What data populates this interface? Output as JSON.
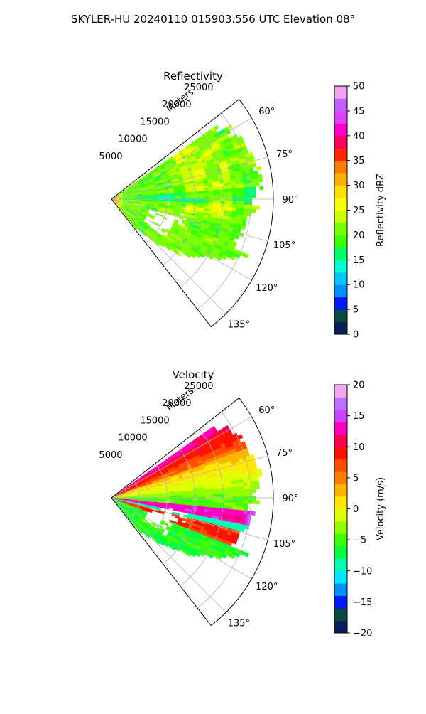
{
  "figure": {
    "suptitle": "SKYLER-HU  20240110  015903.556 UTC Elevation 08°"
  },
  "chart_data": [
    {
      "type": "heatmap",
      "projection": "polar-sector",
      "title": "Reflectivity",
      "range_label": "Meters",
      "range_ticks": [
        5000,
        10000,
        15000,
        20000,
        25000
      ],
      "range_tick_labels": [
        "5000",
        "10000",
        "15000",
        "20000",
        "25000"
      ],
      "azimuth_limits": [
        52,
        142
      ],
      "azimuth_ticks": [
        60,
        75,
        90,
        105,
        120,
        135
      ],
      "azimuth_tick_labels": [
        "60°",
        "75°",
        "90°",
        "105°",
        "120°",
        "135°"
      ],
      "rmax": 29000,
      "grid": true,
      "colorbar": {
        "label": "Reflectivity dBZ",
        "range": [
          0,
          50
        ],
        "ticks": [
          0,
          5,
          10,
          15,
          20,
          25,
          30,
          35,
          40,
          45,
          50
        ],
        "tick_labels": [
          "0",
          "5",
          "10",
          "15",
          "20",
          "25",
          "30",
          "35",
          "40",
          "45",
          "50"
        ],
        "stops": [
          [
            0,
            "#08205a"
          ],
          [
            3,
            "#0a4a3a"
          ],
          [
            5,
            "#0018ff"
          ],
          [
            8,
            "#0090ff"
          ],
          [
            10,
            "#00c8ff"
          ],
          [
            13,
            "#00ffd0"
          ],
          [
            15,
            "#00ff6a"
          ],
          [
            18,
            "#3cff00"
          ],
          [
            20,
            "#78ff00"
          ],
          [
            23,
            "#c8ff00"
          ],
          [
            25,
            "#f5ff00"
          ],
          [
            28,
            "#ffe000"
          ],
          [
            30,
            "#ffb000"
          ],
          [
            33,
            "#ff7a00"
          ],
          [
            35,
            "#ff2800"
          ],
          [
            38,
            "#ff0060"
          ],
          [
            40,
            "#ff00c8"
          ],
          [
            43,
            "#e040ff"
          ],
          [
            45,
            "#c060ff"
          ],
          [
            48,
            "#f0a0f0"
          ],
          [
            50,
            "#ffe8ff"
          ]
        ]
      },
      "field_description": "Mostly 15–28 dBZ echoes over 55°–130° azimuth, strongest (30–40 dBZ) near the radar and in scattered cores at 15–22 km."
    },
    {
      "type": "heatmap",
      "projection": "polar-sector",
      "title": "Velocity",
      "range_label": "Meters",
      "range_ticks": [
        5000,
        10000,
        15000,
        20000,
        25000
      ],
      "range_tick_labels": [
        "5000",
        "10000",
        "15000",
        "20000",
        "25000"
      ],
      "azimuth_limits": [
        52,
        142
      ],
      "azimuth_ticks": [
        60,
        75,
        90,
        105,
        120,
        135
      ],
      "azimuth_tick_labels": [
        "60°",
        "75°",
        "90°",
        "105°",
        "120°",
        "135°"
      ],
      "rmax": 29000,
      "grid": true,
      "colorbar": {
        "label": "Velocity (m/s)",
        "range": [
          -20,
          20
        ],
        "ticks": [
          -20,
          -15,
          -10,
          -5,
          0,
          5,
          10,
          15,
          20
        ],
        "tick_labels": [
          "−20",
          "−15",
          "−10",
          "−5",
          "0",
          "5",
          "10",
          "15",
          "20"
        ],
        "stops": [
          [
            -20,
            "#08205a"
          ],
          [
            -18,
            "#0a4a3a"
          ],
          [
            -16,
            "#0018ff"
          ],
          [
            -14,
            "#0090ff"
          ],
          [
            -12,
            "#00e8ff"
          ],
          [
            -10,
            "#00ffb0"
          ],
          [
            -8,
            "#00ff40"
          ],
          [
            -6,
            "#40ff00"
          ],
          [
            -4,
            "#90ff00"
          ],
          [
            -2,
            "#e0ff00"
          ],
          [
            0,
            "#ffe800"
          ],
          [
            2,
            "#ffb400"
          ],
          [
            4,
            "#ff8000"
          ],
          [
            6,
            "#ff4c00"
          ],
          [
            8,
            "#ff1000"
          ],
          [
            10,
            "#ff0050"
          ],
          [
            12,
            "#ff00c0"
          ],
          [
            14,
            "#d040ff"
          ],
          [
            16,
            "#c070ff"
          ],
          [
            18,
            "#f0a8f0"
          ],
          [
            20,
            "#ffe8ff"
          ]
        ]
      },
      "field_description": "Outbound 5–12 m/s at 55°–80° far range, near 0 m/s around 80°–90°, inbound −10 to −5 m/s beyond 95°, with a narrow band of strong 8–15 m/s near 97°–100°."
    }
  ]
}
